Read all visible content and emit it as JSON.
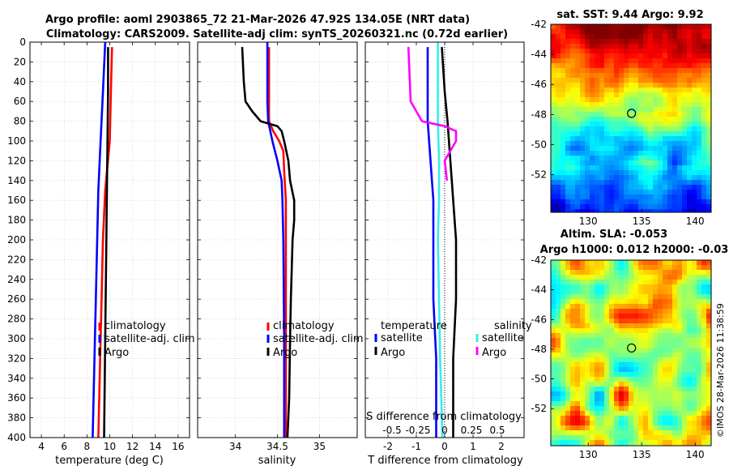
{
  "title": {
    "line1": "Argo profile: aoml 2903865_72 21-Mar-2026 47.92S 134.05E (NRT data)",
    "line2": "Climatology: CARS2009. Satellite-adj clim: synTS_20260321.nc (0.72d earlier)"
  },
  "colors": {
    "climatology": "#ff0000",
    "satellite": "#0000ff",
    "argo": "#000000",
    "sat_salinity": "#33eeee",
    "argo_salinity": "#ff00ff"
  },
  "chart_data": [
    {
      "id": "temperature",
      "type": "line",
      "xlabel": "temperature (deg C)",
      "ylabel": "",
      "xlim": [
        3,
        17
      ],
      "ylim": [
        400,
        0
      ],
      "xticks": [
        4,
        6,
        8,
        10,
        12,
        14,
        16
      ],
      "yticks": [
        0,
        20,
        40,
        60,
        80,
        100,
        120,
        140,
        160,
        180,
        200,
        220,
        240,
        260,
        280,
        300,
        320,
        340,
        360,
        380,
        400
      ],
      "grid": true,
      "legend": [
        "climatology",
        "satellite-adj. clim",
        "Argo"
      ],
      "series": [
        {
          "name": "climatology",
          "color": "#ff0000",
          "depth": [
            5,
            50,
            100,
            150,
            200,
            250,
            300,
            350,
            400
          ],
          "values": [
            10.2,
            10.1,
            10.0,
            9.6,
            9.4,
            9.3,
            9.2,
            9.1,
            9.0
          ]
        },
        {
          "name": "satellite-adj. clim",
          "color": "#0000ff",
          "depth": [
            0,
            50,
            100,
            150,
            200,
            250,
            300,
            350,
            400
          ],
          "values": [
            9.6,
            9.4,
            9.2,
            9.0,
            8.9,
            8.8,
            8.7,
            8.6,
            8.5
          ]
        },
        {
          "name": "Argo",
          "color": "#000000",
          "depth": [
            5,
            50,
            100,
            150,
            200,
            250,
            300,
            350,
            400
          ],
          "values": [
            9.85,
            9.85,
            9.8,
            9.75,
            9.7,
            9.65,
            9.6,
            9.55,
            9.5
          ]
        }
      ]
    },
    {
      "id": "salinity",
      "type": "line",
      "xlabel": "salinity",
      "xlim": [
        33.55,
        35.45
      ],
      "ylim": [
        400,
        0
      ],
      "xticks": [
        34,
        34.5,
        35
      ],
      "xtick_labels": [
        "34",
        "34.5",
        "35"
      ],
      "grid": true,
      "legend": [
        "climatology",
        "satellite-adj. clim",
        "Argo"
      ],
      "series": [
        {
          "name": "climatology",
          "color": "#ff0000",
          "depth": [
            5,
            60,
            80,
            90,
            100,
            110,
            130,
            160,
            200,
            300,
            400
          ],
          "values": [
            34.4,
            34.4,
            34.4,
            34.45,
            34.52,
            34.57,
            34.58,
            34.6,
            34.6,
            34.6,
            34.6
          ]
        },
        {
          "name": "satellite-adj. clim",
          "color": "#0000ff",
          "depth": [
            0,
            60,
            80,
            100,
            120,
            140,
            160,
            200,
            300,
            400
          ],
          "values": [
            34.38,
            34.38,
            34.39,
            34.44,
            34.5,
            34.55,
            34.56,
            34.57,
            34.58,
            34.58
          ]
        },
        {
          "name": "Argo",
          "color": "#000000",
          "depth": [
            5,
            40,
            60,
            70,
            80,
            85,
            90,
            100,
            120,
            140,
            160,
            180,
            200,
            260,
            300,
            360,
            400
          ],
          "values": [
            34.08,
            34.1,
            34.12,
            34.2,
            34.3,
            34.5,
            34.55,
            34.58,
            34.63,
            34.65,
            34.7,
            34.7,
            34.68,
            34.66,
            34.65,
            34.64,
            34.62
          ]
        }
      ]
    },
    {
      "id": "difference",
      "type": "line",
      "xlabel": "T difference from climatology",
      "xlim": [
        -2.8,
        2.8
      ],
      "ylim": [
        400,
        0
      ],
      "xticks": [
        -2,
        -1,
        0,
        1,
        2
      ],
      "secondary_label": "S difference from climatology",
      "secondary_ticks": [
        "-0.5",
        "-0.25",
        "0",
        "0.25",
        "0.5"
      ],
      "grid": true,
      "legend_temperature_title": "temperature",
      "legend_salinity_title": "salinity",
      "legend_temperature": [
        "satellite",
        "Argo"
      ],
      "legend_salinity": [
        "satellite",
        "Argo"
      ],
      "series": [
        {
          "name": "T satellite",
          "color": "#0000ff",
          "depth": [
            5,
            50,
            80,
            120,
            160,
            200,
            260,
            320,
            400
          ],
          "values": [
            -0.6,
            -0.6,
            -0.6,
            -0.5,
            -0.4,
            -0.4,
            -0.4,
            -0.3,
            -0.3
          ]
        },
        {
          "name": "T Argo",
          "color": "#000000",
          "depth": [
            5,
            50,
            80,
            120,
            160,
            200,
            260,
            320,
            400
          ],
          "values": [
            -0.1,
            0.0,
            0.1,
            0.2,
            0.3,
            0.4,
            0.4,
            0.3,
            0.3
          ]
        },
        {
          "name": "S satellite",
          "color": "#33eeee",
          "depth": [
            0,
            80,
            120,
            160,
            200,
            260,
            320,
            400
          ],
          "values": [
            -0.06,
            -0.06,
            -0.05,
            -0.05,
            -0.06,
            -0.05,
            -0.04,
            -0.02
          ]
        },
        {
          "name": "S Argo",
          "color": "#ff00ff",
          "depth": [
            5,
            60,
            80,
            85,
            90,
            100,
            120,
            140
          ],
          "values": [
            -0.32,
            -0.3,
            -0.2,
            0.0,
            0.1,
            0.1,
            0.0,
            0.02
          ]
        }
      ]
    },
    {
      "id": "sst_map",
      "type": "heatmap",
      "title": "sat. SST: 9.44 Argo: 9.92",
      "xlim": [
        126.5,
        141.5
      ],
      "ylim": [
        -54.5,
        -42
      ],
      "xticks": [
        130,
        135,
        140
      ],
      "yticks": [
        -42,
        -44,
        -46,
        -48,
        -50,
        -52
      ],
      "marker": {
        "lon": 134.05,
        "lat": -47.92
      }
    },
    {
      "id": "sla_map",
      "type": "heatmap",
      "title": "Altim. SLA: -0.053",
      "subtitle": "Argo h1000: 0.012 h2000: -0.03",
      "xlim": [
        126.5,
        141.5
      ],
      "ylim": [
        -54.5,
        -42
      ],
      "xticks": [
        130,
        135,
        140
      ],
      "yticks": [
        -42,
        -44,
        -46,
        -48,
        -50,
        -52
      ],
      "marker": {
        "lon": 134.05,
        "lat": -47.92
      }
    }
  ],
  "watermark": "©IMOS 28-Mar-2026 11:38:59"
}
